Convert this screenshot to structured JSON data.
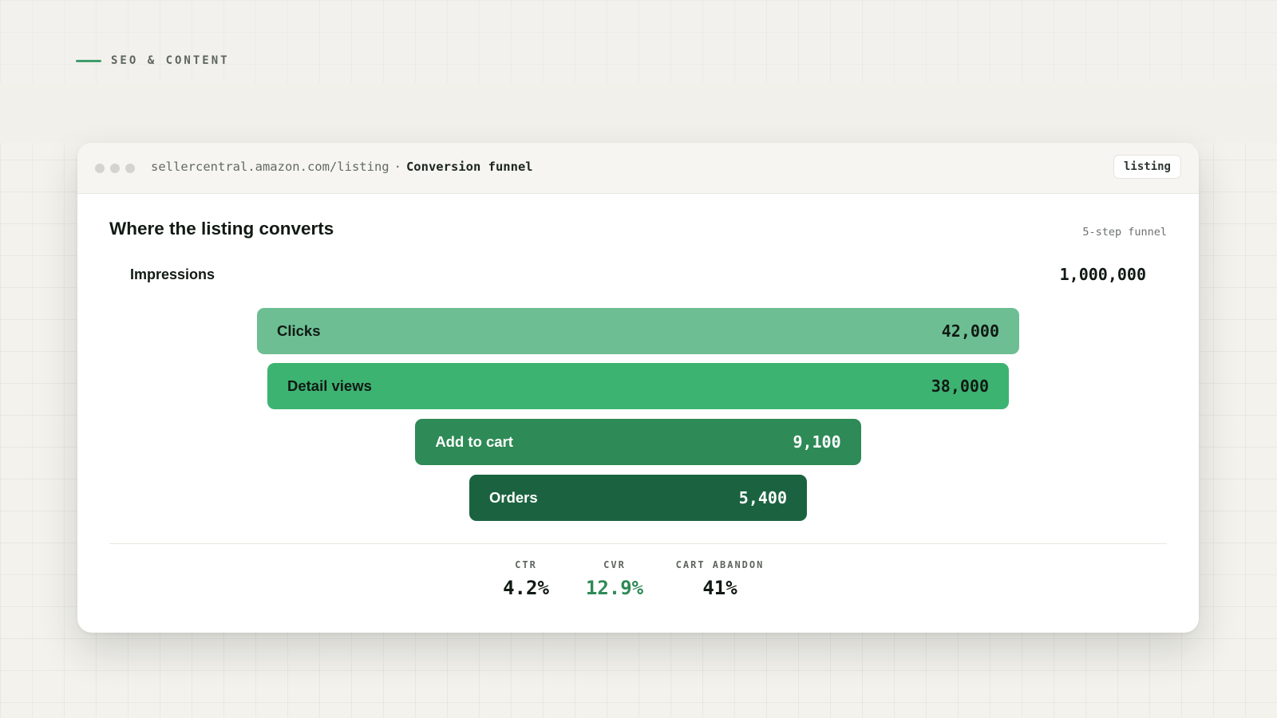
{
  "section_label": "SEO & CONTENT",
  "window": {
    "url": "sellercentral.amazon.com/listing",
    "separator": "·",
    "page_title": "Conversion funnel",
    "tag": "listing"
  },
  "card": {
    "title": "Where the listing converts",
    "subtitle": "5-step funnel"
  },
  "chart_data": {
    "type": "bar",
    "subtype": "funnel",
    "categories": [
      "Impressions",
      "Clicks",
      "Detail views",
      "Add to cart",
      "Orders"
    ],
    "values": [
      1000000,
      42000,
      38000,
      9100,
      5400
    ],
    "value_labels": [
      "1,000,000",
      "42,000",
      "38,000",
      "9,100",
      "5,400"
    ],
    "colors": [
      "#ffffff",
      "#6dbf93",
      "#3db372",
      "#2e8a56",
      "#1b6340"
    ]
  },
  "metrics": [
    {
      "label": "CTR",
      "value": "4.2%",
      "color": "#111a14"
    },
    {
      "label": "CVR",
      "value": "12.9%",
      "color": "#2e8a56"
    },
    {
      "label": "CART ABANDON",
      "value": "41%",
      "color": "#111a14"
    }
  ]
}
